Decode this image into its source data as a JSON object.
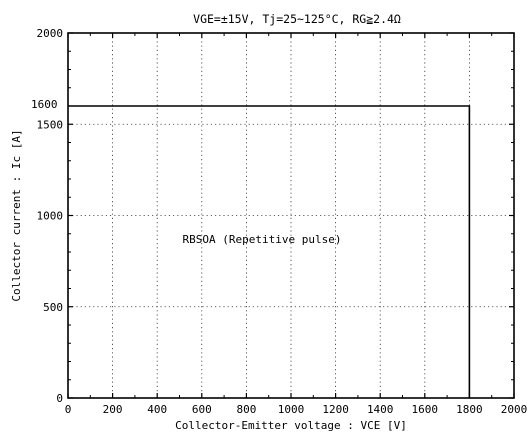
{
  "chart_data": {
    "type": "line",
    "title": "VGE=±15V,  Tj=25~125°C, RG≧2.4Ω",
    "xlabel": "Collector-Emitter voltage : VCE [V]",
    "ylabel": "Collector current : Ic [A]",
    "xlim": [
      0,
      2000
    ],
    "ylim": [
      0,
      2000
    ],
    "x_ticks": [
      "0",
      "200",
      "400",
      "600",
      "800",
      "1000",
      "1200",
      "1400",
      "1600",
      "1800",
      "2000"
    ],
    "y_ticks": [
      "0",
      "500",
      "1000",
      "1500",
      "2000"
    ],
    "extra_y_tick": "1600",
    "grid": true,
    "annotation": "RBSOA (Repetitive pulse)",
    "series": [
      {
        "points": [
          {
            "x": 0,
            "y": 1600
          },
          {
            "x": 1800,
            "y": 1600
          },
          {
            "x": 1800,
            "y": 0
          }
        ]
      }
    ]
  }
}
